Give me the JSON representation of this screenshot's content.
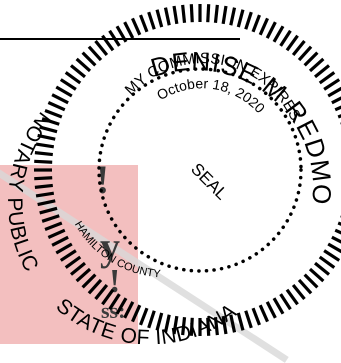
{
  "stamp": {
    "name": "DENISE M REDMON",
    "commission_line1": "MY COMMISSION EXPIRES",
    "commission_line2": "October 18, 2020",
    "title": "NOTARY PUBLIC",
    "state": "STATE OF INDIANA",
    "county": "HAMILTON COUNTY",
    "center": "SEAL"
  },
  "background_text": {
    "word1": "!",
    "word2": "y",
    "word3": "!",
    "word4": "ss:"
  },
  "colors": {
    "ink": "#000000",
    "highlight": "#f3bfbf"
  }
}
